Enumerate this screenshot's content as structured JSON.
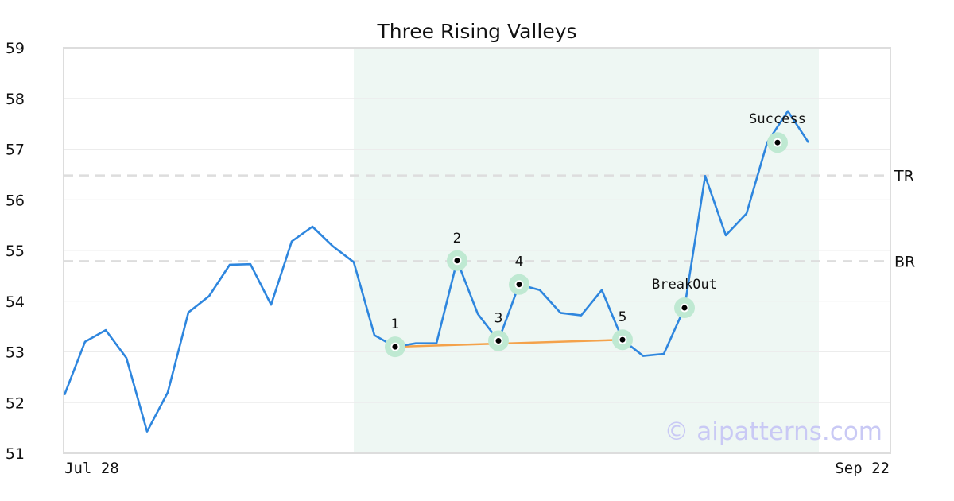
{
  "chart_data": {
    "type": "line",
    "title": "Three Rising Valleys",
    "xlabel": "",
    "ylabel": "",
    "ylim": [
      51,
      59
    ],
    "yticks": [
      51,
      52,
      53,
      54,
      55,
      56,
      57,
      58,
      59
    ],
    "x_tick_labels": [
      "Jul 28",
      "Sep 22"
    ],
    "grid": true,
    "series": [
      {
        "color": "#2e86de",
        "values": [
          52.15,
          53.2,
          53.43,
          52.88,
          51.43,
          52.2,
          53.78,
          54.1,
          54.72,
          54.73,
          53.93,
          55.18,
          55.47,
          55.08,
          54.77,
          53.33,
          53.1,
          53.17,
          53.17,
          54.8,
          53.75,
          53.22,
          54.33,
          54.22,
          53.77,
          53.72,
          54.22,
          53.24,
          52.92,
          52.96,
          53.87,
          56.47,
          55.3,
          55.73,
          57.13,
          57.75,
          57.13
        ]
      }
    ],
    "highlight_region": {
      "from_index": 14,
      "to_index": 36.5,
      "color": "#eef7f3"
    },
    "horizontal_lines": [
      {
        "label": "TR",
        "value": 56.48,
        "color": "#dddddd"
      },
      {
        "label": "BR",
        "value": 54.79,
        "color": "#dddddd"
      }
    ],
    "points": [
      {
        "label": "1",
        "index": 16,
        "value": 53.1
      },
      {
        "label": "2",
        "index": 19,
        "value": 54.8
      },
      {
        "label": "3",
        "index": 21,
        "value": 53.22
      },
      {
        "label": "4",
        "index": 22,
        "value": 54.33
      },
      {
        "label": "5",
        "index": 27,
        "value": 53.24
      }
    ],
    "annotations": [
      {
        "label": "BreakOut",
        "index": 30,
        "value": 53.87
      },
      {
        "label": "Success",
        "index": 34.5,
        "value": 57.13
      }
    ],
    "trendline": {
      "from_index": 16,
      "from_value": 53.1,
      "to_index": 27,
      "to_value": 53.24,
      "color": "#f4a24a"
    },
    "colors": {
      "line": "#2e86de",
      "marker_halo": "#bfe9d2",
      "marker": "#000000"
    }
  },
  "watermark": "© aipatterns.com"
}
